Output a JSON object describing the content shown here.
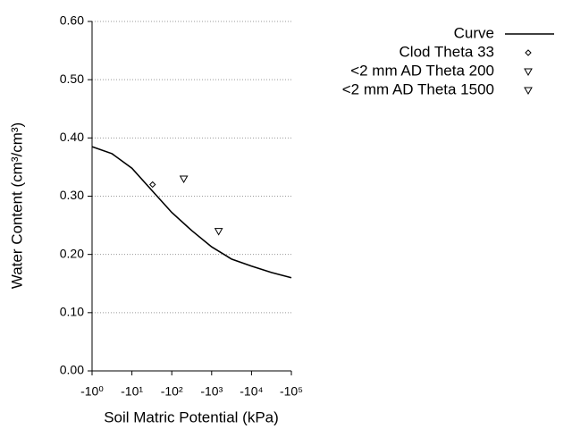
{
  "chart_data": {
    "type": "line",
    "xlabel": "Soil Matric Potential (kPa)",
    "ylabel": "Water Content (cm³/cm³)",
    "xscale": "log",
    "xlim": [
      -1,
      -100000
    ],
    "xticks": [
      {
        "value": -1,
        "label": "-10⁰"
      },
      {
        "value": -10,
        "label": "-10¹"
      },
      {
        "value": -100,
        "label": "-10²"
      },
      {
        "value": -1000,
        "label": "-10³"
      },
      {
        "value": -10000,
        "label": "-10⁴"
      },
      {
        "value": -100000,
        "label": "-10⁵"
      }
    ],
    "ylim": [
      0,
      0.6
    ],
    "yticks": [
      {
        "value": 0,
        "label": "0.00"
      },
      {
        "value": 0.1,
        "label": "0.10"
      },
      {
        "value": 0.2,
        "label": "0.20"
      },
      {
        "value": 0.3,
        "label": "0.30"
      },
      {
        "value": 0.4,
        "label": "0.40"
      },
      {
        "value": 0.5,
        "label": "0.50"
      },
      {
        "value": 0.6,
        "label": "0.60"
      }
    ],
    "grid": true,
    "legend": "top-right",
    "series": [
      {
        "name": "Curve",
        "color": "#000000",
        "marker": "none",
        "x": [
          -1,
          -3.16,
          -10,
          -31.6,
          -100,
          -316,
          -1000,
          -3162,
          -10000,
          -31623,
          -100000
        ],
        "values": [
          0.385,
          0.373,
          0.348,
          0.31,
          0.272,
          0.241,
          0.213,
          0.192,
          0.18,
          0.169,
          0.16
        ]
      },
      {
        "name": "Clod Theta 33",
        "color": "#000000",
        "marker": "diamond",
        "x": [
          -33
        ],
        "values": [
          0.32
        ]
      },
      {
        "name": "<2 mm AD Theta 200",
        "color": "#000000",
        "marker": "triangle-down",
        "x": [
          -200
        ],
        "values": [
          0.33
        ]
      },
      {
        "name": "<2 mm AD Theta 1500",
        "color": "#000000",
        "marker": "triangle-down",
        "x": [
          -1500
        ],
        "values": [
          0.24
        ]
      }
    ]
  }
}
